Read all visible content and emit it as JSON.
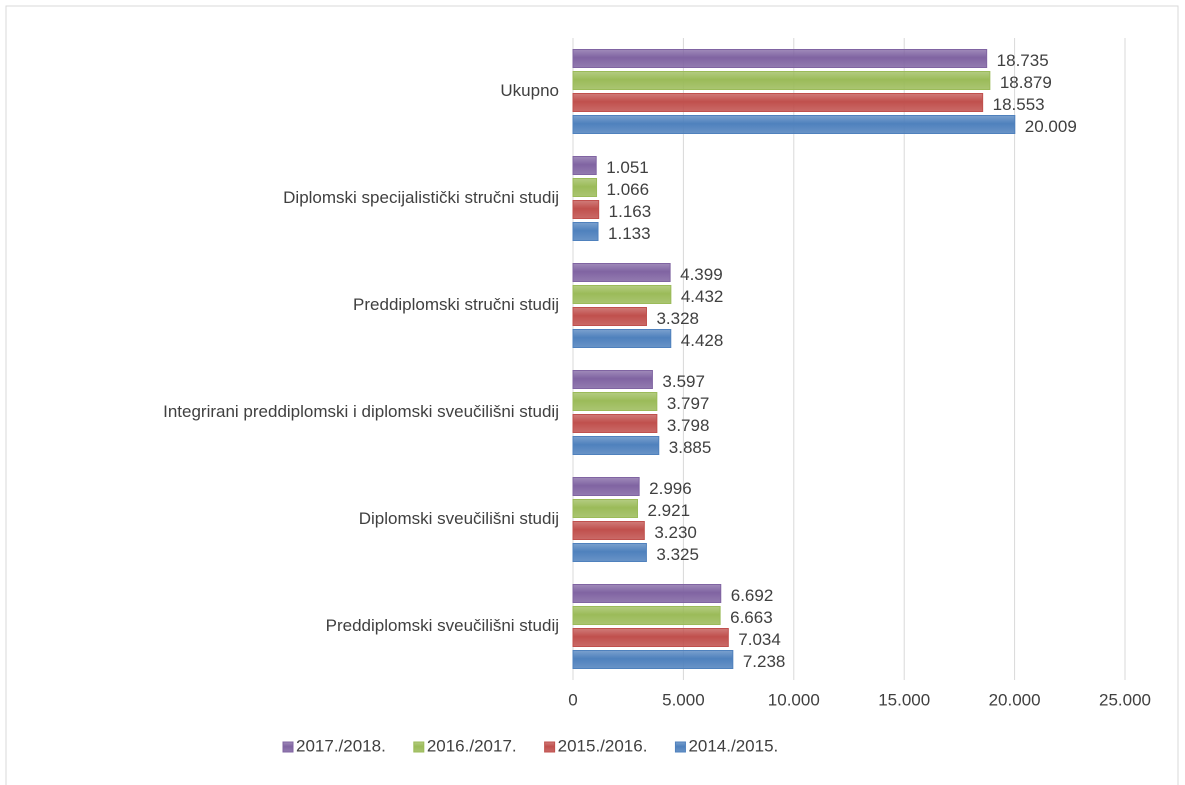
{
  "chart_data": {
    "type": "hbar",
    "categories": [
      "Ukupno",
      "Diplomski specijalistički stručni studij",
      "Preddiplomski stručni studij",
      "Integrirani preddiplomski i diplomski sveučilišni  studij",
      "Diplomski sveučilišni studij",
      "Preddiplomski sveučilišni studij"
    ],
    "series": [
      {
        "name": "2017./2018.",
        "color": "#8064a2",
        "values": [
          18735,
          1051,
          4399,
          3597,
          2996,
          6692
        ],
        "value_labels": [
          "18.735",
          "1.051",
          "4.399",
          "3.597",
          "2.996",
          "6.692"
        ]
      },
      {
        "name": "2016./2017.",
        "color": "#9bbb59",
        "values": [
          18879,
          1066,
          4432,
          3797,
          2921,
          6663
        ],
        "value_labels": [
          "18.879",
          "1.066",
          "4.432",
          "3.797",
          "2.921",
          "6.663"
        ]
      },
      {
        "name": "2015./2016.",
        "color": "#c0504d",
        "values": [
          18553,
          1163,
          3328,
          3798,
          3230,
          7034
        ],
        "value_labels": [
          "18.553",
          "1.163",
          "3.328",
          "3.798",
          "3.230",
          "7.034"
        ]
      },
      {
        "name": "2014./2015.",
        "color": "#4f81bd",
        "values": [
          20009,
          1133,
          4428,
          3885,
          3325,
          7238
        ],
        "value_labels": [
          "20.009",
          "1.133",
          "4.428",
          "3.885",
          "3.325",
          "7.238"
        ]
      }
    ],
    "xlim": [
      0,
      25000
    ],
    "xticks": [
      0,
      {
        "value": 5000,
        "label": "5.000"
      },
      {
        "value": 10000,
        "label": "10.000"
      },
      {
        "value": 15000,
        "label": "15.000"
      },
      {
        "value": 20000,
        "label": "20.000"
      },
      {
        "value": 25000,
        "label": "25.000"
      }
    ],
    "grid": true,
    "legend": "bottom"
  }
}
